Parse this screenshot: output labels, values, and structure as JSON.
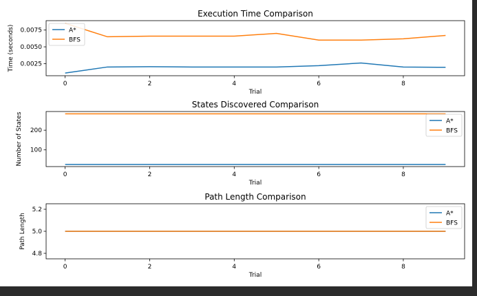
{
  "chart_data": [
    {
      "type": "line",
      "title": "Execution Time Comparison",
      "xlabel": "Trial",
      "ylabel": "Time (seconds)",
      "x": [
        0,
        1,
        2,
        3,
        4,
        5,
        6,
        7,
        8,
        9
      ],
      "xlim": [
        -0.45,
        9.45
      ],
      "ylim": [
        0.0007,
        0.0089
      ],
      "xticks": [
        0,
        2,
        4,
        6,
        8
      ],
      "yticks": [
        0.0025,
        0.005,
        0.0075
      ],
      "ytick_labels": [
        "0.0025",
        "0.0050",
        "0.0075"
      ],
      "legend_position": "upper-left",
      "grid": false,
      "series": [
        {
          "name": "A*",
          "color": "#1f77b4",
          "values": [
            0.0011,
            0.002,
            0.00205,
            0.002,
            0.002,
            0.002,
            0.0022,
            0.0026,
            0.002,
            0.00195
          ]
        },
        {
          "name": "BFS",
          "color": "#ff7f0e",
          "values": [
            0.0085,
            0.0065,
            0.0066,
            0.0066,
            0.0066,
            0.007,
            0.006,
            0.006,
            0.0062,
            0.0067
          ]
        }
      ]
    },
    {
      "type": "line",
      "title": "States Discovered Comparison",
      "xlabel": "Trial",
      "ylabel": "Number of States",
      "x": [
        0,
        1,
        2,
        3,
        4,
        5,
        6,
        7,
        8,
        9
      ],
      "xlim": [
        -0.45,
        9.45
      ],
      "ylim": [
        15,
        295
      ],
      "xticks": [
        0,
        2,
        4,
        6,
        8
      ],
      "yticks": [
        100,
        200
      ],
      "ytick_labels": [
        "100",
        "200"
      ],
      "legend_position": "upper-right",
      "grid": false,
      "series": [
        {
          "name": "A*",
          "color": "#1f77b4",
          "values": [
            26,
            26,
            26,
            26,
            26,
            26,
            26,
            26,
            26,
            26
          ]
        },
        {
          "name": "BFS",
          "color": "#ff7f0e",
          "values": [
            283,
            283,
            283,
            283,
            283,
            283,
            283,
            283,
            283,
            283
          ]
        }
      ]
    },
    {
      "type": "line",
      "title": "Path Length Comparison",
      "xlabel": "Trial",
      "ylabel": "Path Length",
      "x": [
        0,
        1,
        2,
        3,
        4,
        5,
        6,
        7,
        8,
        9
      ],
      "xlim": [
        -0.45,
        9.45
      ],
      "ylim": [
        4.75,
        5.25
      ],
      "xticks": [
        0,
        2,
        4,
        6,
        8
      ],
      "yticks": [
        4.8,
        5.0,
        5.2
      ],
      "ytick_labels": [
        "4.8",
        "5.0",
        "5.2"
      ],
      "legend_position": "upper-right",
      "grid": false,
      "series": [
        {
          "name": "A*",
          "color": "#1f77b4",
          "values": [
            5,
            5,
            5,
            5,
            5,
            5,
            5,
            5,
            5,
            5
          ]
        },
        {
          "name": "BFS",
          "color": "#ff7f0e",
          "values": [
            5,
            5,
            5,
            5,
            5,
            5,
            5,
            5,
            5,
            5
          ]
        }
      ]
    }
  ]
}
